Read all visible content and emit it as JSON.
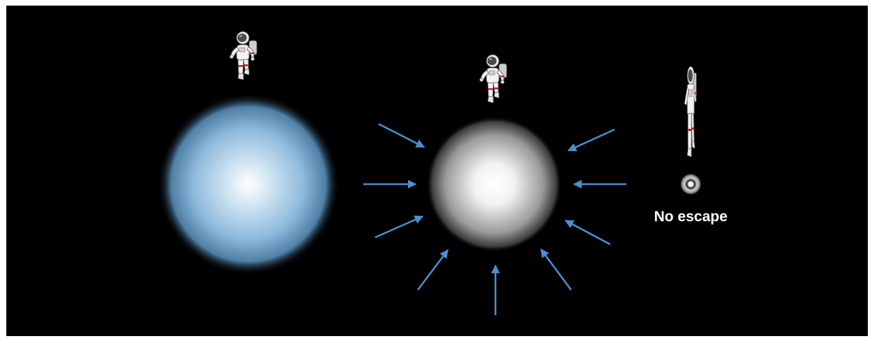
{
  "caption": {
    "text": "No escape"
  },
  "colors": {
    "background": "#000000",
    "arrow": "#4a90d0",
    "star_core": "#ffffff",
    "star_edge": "#5e9ccb",
    "compressed_edge": "#2b2b2b",
    "suit": "#f2f2f2",
    "suit_band": "#b52a2a"
  },
  "stages": [
    {
      "name": "large-star",
      "icon": "astronaut-icon"
    },
    {
      "name": "collapsing-star",
      "icon": "astronaut-icon"
    },
    {
      "name": "black-hole",
      "icon": "astronaut-icon"
    }
  ]
}
